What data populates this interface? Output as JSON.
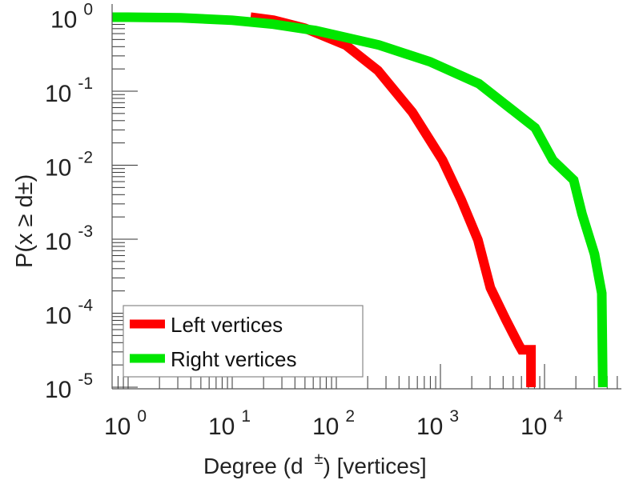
{
  "chart_data": {
    "type": "line",
    "title": "",
    "xlabel": "Degree (d ±) [vertices]",
    "xlabel_parts": {
      "pre": "Degree (d",
      "sup": "±",
      "post": ") [vertices]"
    },
    "ylabel": "P(x ≥ d±)",
    "ylabel_parts": {
      "pre": "P(x ≥ d",
      "sup": "±",
      "post": ")"
    },
    "xscale": "log",
    "yscale": "log",
    "xlim": [
      0.7,
      54000
    ],
    "ylim": [
      1e-05,
      1.5
    ],
    "grid": false,
    "x_ticks": [
      {
        "base": "10",
        "exp": "0",
        "value": 1
      },
      {
        "base": "10",
        "exp": "1",
        "value": 10
      },
      {
        "base": "10",
        "exp": "2",
        "value": 100
      },
      {
        "base": "10",
        "exp": "3",
        "value": 1000
      },
      {
        "base": "10",
        "exp": "4",
        "value": 10000
      }
    ],
    "y_ticks": [
      {
        "base": "10",
        "exp": "0",
        "value": 1
      },
      {
        "base": "10",
        "exp": "-1",
        "value": 0.1
      },
      {
        "base": "10",
        "exp": "-2",
        "value": 0.01
      },
      {
        "base": "10",
        "exp": "-3",
        "value": 0.001
      },
      {
        "base": "10",
        "exp": "-4",
        "value": 0.0001
      },
      {
        "base": "10",
        "exp": "-5",
        "value": 1e-05
      }
    ],
    "legend_position": "bottom-left",
    "series": [
      {
        "name": "Left vertices",
        "color": "#ff0000",
        "x": [
          15,
          25,
          50,
          123,
          251,
          537,
          1047,
          1585,
          2291,
          3020,
          4266,
          5623,
          6026,
          7413,
          7413
        ],
        "y": [
          1,
          0.91,
          0.71,
          0.42,
          0.19,
          0.052,
          0.0117,
          0.0034,
          0.00098,
          0.00022,
          8.1e-05,
          3.8e-05,
          3.2e-05,
          3.2e-05,
          1e-05
        ]
      },
      {
        "name": "Right vertices",
        "color": "#00e600",
        "x": [
          0.7,
          1,
          3.2,
          10,
          24,
          63,
          257,
          794,
          2344,
          8128,
          12023,
          19055,
          22909,
          30200,
          35481,
          36308
        ],
        "y": [
          1,
          1,
          0.98,
          0.91,
          0.81,
          0.66,
          0.42,
          0.25,
          0.126,
          0.032,
          0.0117,
          0.0063,
          0.0022,
          0.00063,
          0.000186,
          1e-05
        ]
      }
    ]
  }
}
